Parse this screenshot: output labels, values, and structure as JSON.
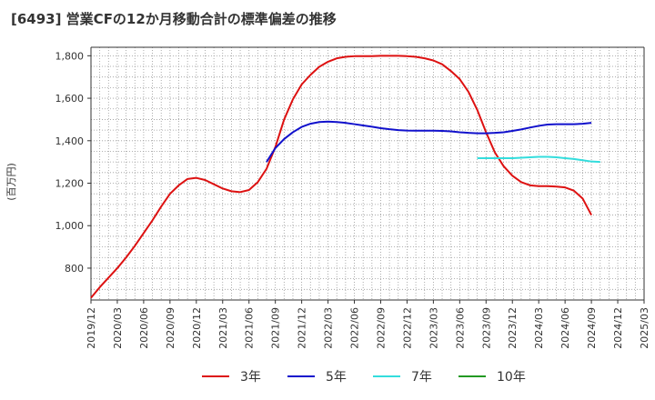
{
  "title": "[6493]  営業CFの12か月移動合計の標準偏差の推移",
  "chart_data": {
    "type": "line",
    "title": "[6493]  営業CFの12か月移動合計の標準偏差の推移",
    "ylabel": "(百万円)",
    "xlabel": "",
    "ylim": [
      650,
      1840
    ],
    "x_ticks": [
      "2019/12",
      "2020/03",
      "2020/06",
      "2020/09",
      "2020/12",
      "2021/03",
      "2021/06",
      "2021/09",
      "2021/12",
      "2022/03",
      "2022/06",
      "2022/09",
      "2022/12",
      "2023/03",
      "2023/06",
      "2023/09",
      "2023/12",
      "2024/03",
      "2024/06",
      "2024/09",
      "2024/12",
      "2025/03"
    ],
    "y_ticks": [
      800,
      1000,
      1200,
      1400,
      1600,
      1800
    ],
    "y_tick_labels": [
      "800",
      "1,000",
      "1,200",
      "1,400",
      "1,600",
      "1,800"
    ],
    "grid": true,
    "legend_position": "bottom",
    "series": [
      {
        "name": "3年",
        "color": "#dd1111",
        "start": "2019/12",
        "values": [
          660,
          710,
          755,
          800,
          850,
          905,
          965,
          1025,
          1090,
          1150,
          1190,
          1220,
          1225,
          1215,
          1195,
          1175,
          1162,
          1158,
          1168,
          1205,
          1268,
          1370,
          1500,
          1595,
          1665,
          1710,
          1748,
          1772,
          1788,
          1795,
          1798,
          1798,
          1798,
          1800,
          1800,
          1800,
          1798,
          1795,
          1788,
          1778,
          1760,
          1728,
          1690,
          1630,
          1545,
          1440,
          1345,
          1280,
          1235,
          1205,
          1190,
          1186,
          1186,
          1184,
          1180,
          1165,
          1128,
          1050
        ]
      },
      {
        "name": "5年",
        "color": "#1111cc",
        "start": "2021/08",
        "values": [
          1300,
          1365,
          1408,
          1440,
          1465,
          1480,
          1488,
          1490,
          1488,
          1484,
          1478,
          1472,
          1466,
          1459,
          1454,
          1450,
          1448,
          1447,
          1447,
          1447,
          1446,
          1444,
          1440,
          1437,
          1435,
          1435,
          1437,
          1440,
          1446,
          1453,
          1462,
          1470,
          1476,
          1478,
          1478,
          1478,
          1480,
          1484
        ]
      },
      {
        "name": "7年",
        "color": "#33dddd",
        "start": "2023/08",
        "values": [
          1318,
          1318,
          1318,
          1318,
          1318,
          1320,
          1322,
          1324,
          1324,
          1322,
          1318,
          1314,
          1308,
          1302,
          1300
        ]
      },
      {
        "name": "10年",
        "color": "#229922",
        "start": "2024/09",
        "values": []
      }
    ]
  }
}
